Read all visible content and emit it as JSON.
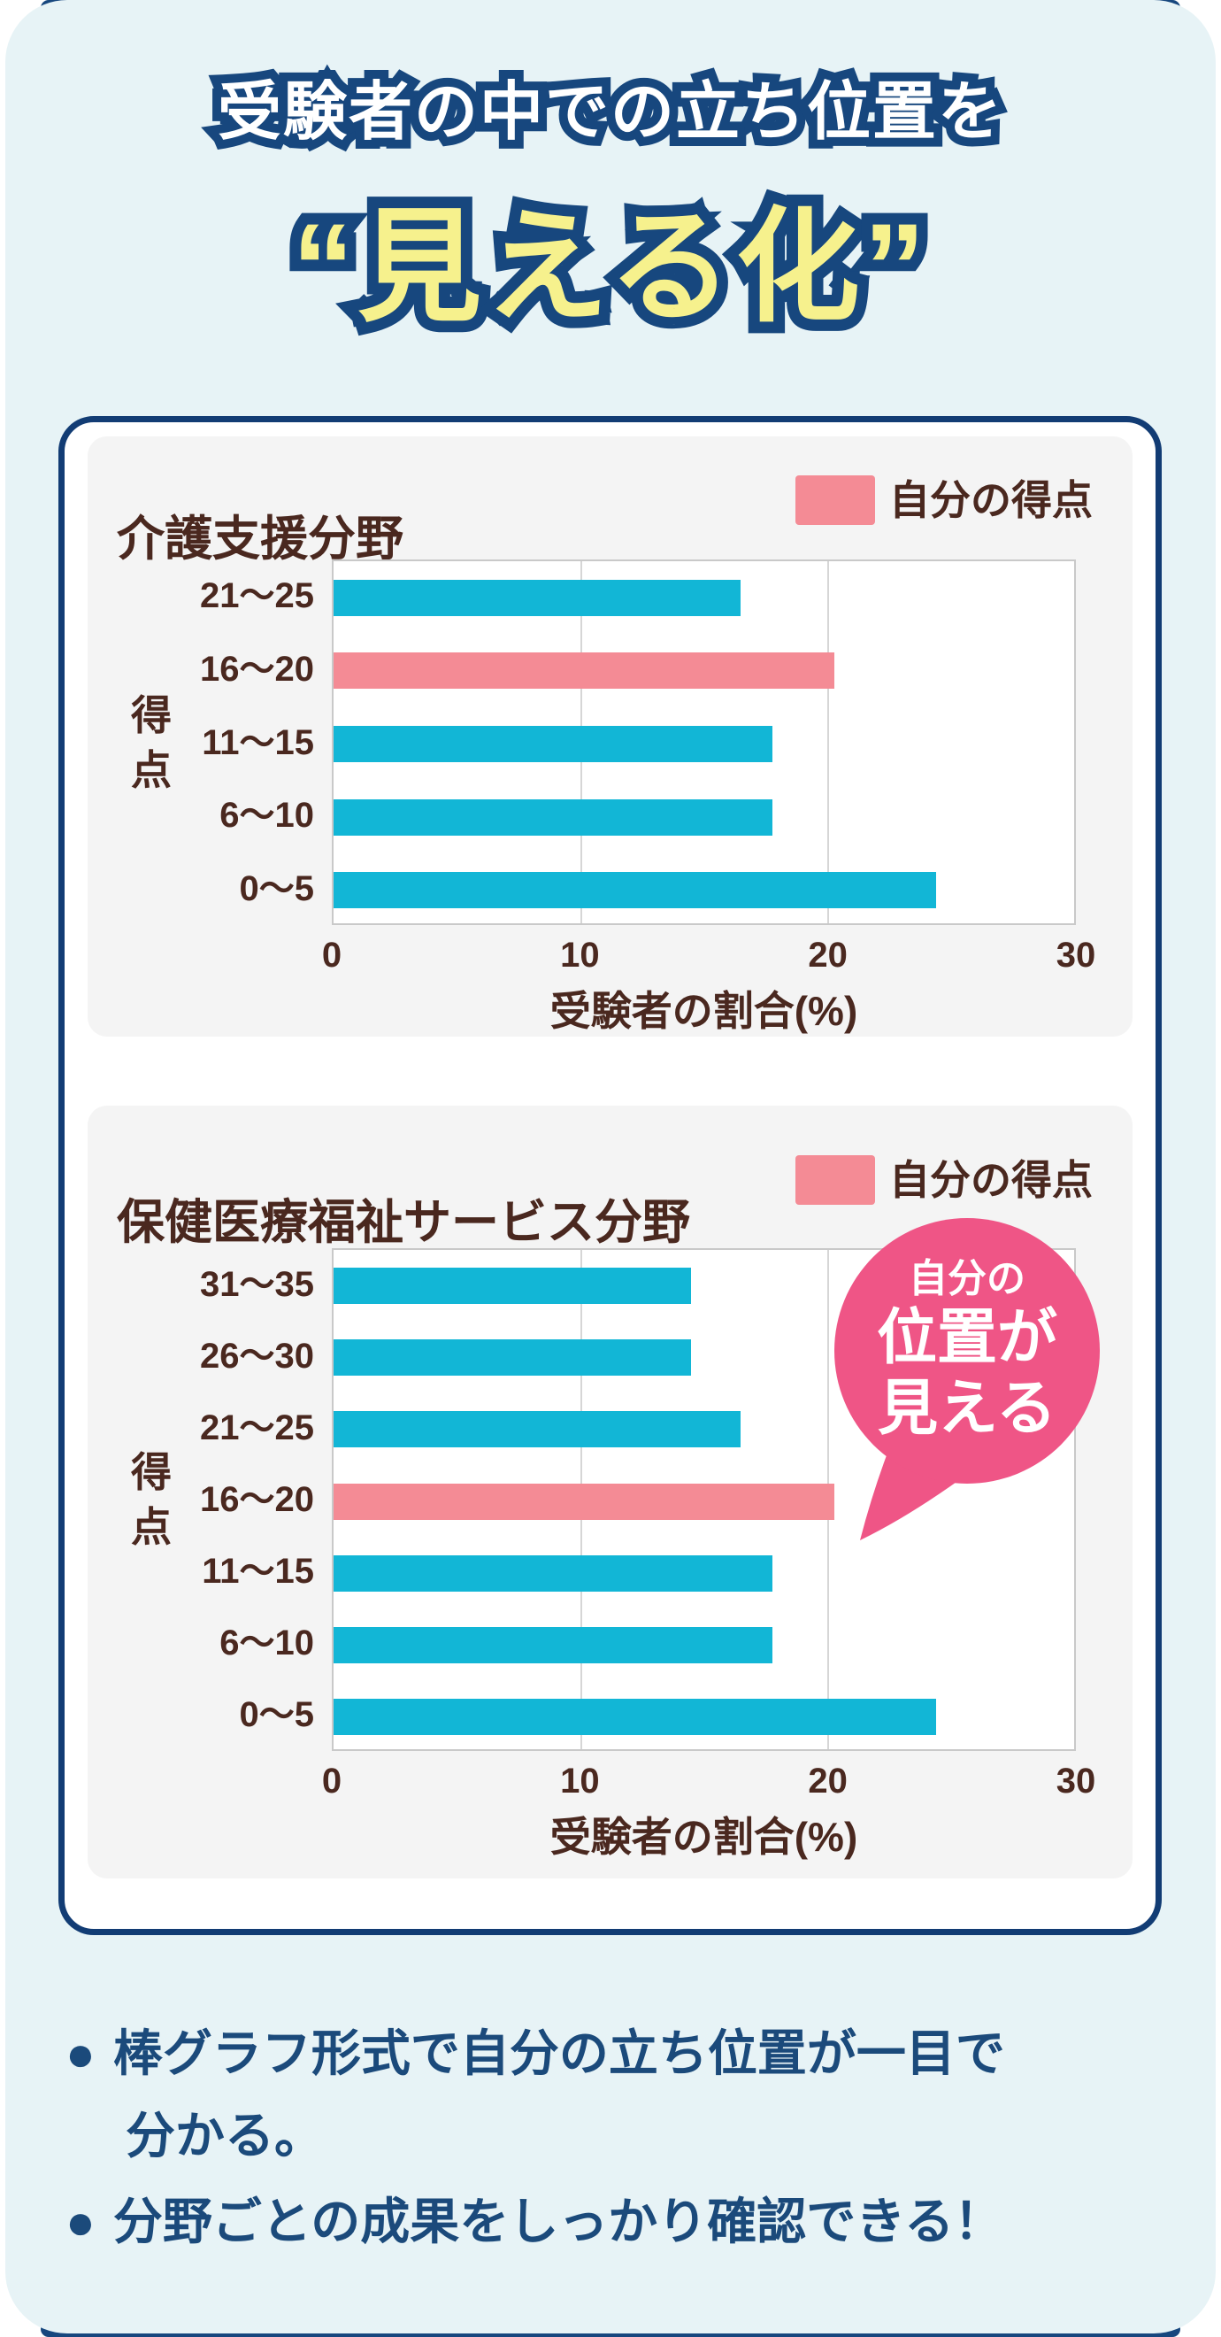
{
  "hero": {
    "subtitle": "受験者の中での立ち位置を",
    "title": "“見える化”"
  },
  "chart_data": [
    {
      "type": "bar",
      "orientation": "horizontal",
      "title": "介護支援分野",
      "legend": "自分の得点",
      "ylabel": "得点",
      "xlabel": "受験者の割合(%)",
      "categories": [
        "21〜25",
        "16〜20",
        "11〜15",
        "6〜10",
        "0〜5"
      ],
      "values": [
        16.4,
        20.2,
        17.7,
        17.7,
        24.3
      ],
      "highlight_index": 1,
      "xticks": [
        "0",
        "10",
        "20",
        "30"
      ],
      "xlim": [
        0,
        30
      ],
      "grid": true,
      "legend_position": "top-right",
      "bar_color": "#12B6D6",
      "highlight_color": "#F48B95"
    },
    {
      "type": "bar",
      "orientation": "horizontal",
      "title": "保健医療福祉サービス分野",
      "legend": "自分の得点",
      "ylabel": "得点",
      "xlabel": "受験者の割合(%)",
      "categories": [
        "31〜35",
        "26〜30",
        "21〜25",
        "16〜20",
        "11〜15",
        "6〜10",
        "0〜5"
      ],
      "values": [
        14.4,
        14.4,
        16.4,
        20.2,
        17.7,
        17.7,
        24.3
      ],
      "highlight_index": 3,
      "xticks": [
        "0",
        "10",
        "20",
        "30"
      ],
      "xlim": [
        0,
        30
      ],
      "grid": true,
      "legend_position": "top-right",
      "bar_color": "#12B6D6",
      "highlight_color": "#F48B95"
    }
  ],
  "bubble": {
    "lines": [
      "自分の",
      "位置が",
      "見える"
    ],
    "color": "#EF5586"
  },
  "notes": [
    {
      "marker": "●",
      "text": "棒グラフ形式で自分の立ち位置が一目で",
      "indent": false
    },
    {
      "marker": "",
      "text": "分かる。",
      "indent": true
    },
    {
      "marker": "●",
      "text": "分野ごとの成果をしっかり確認できる！",
      "indent": false
    }
  ],
  "colors": {
    "background": "#E7F3F6",
    "navy": "#17477E",
    "card_border": "#123C74",
    "bar_cyan": "#12B6D6",
    "bar_pink": "#F48B95",
    "bubble_pink": "#EF5586",
    "chart_text": "#4A281F",
    "hero_yellow": "#F6F18D",
    "note_text": "#1B4A7B"
  }
}
